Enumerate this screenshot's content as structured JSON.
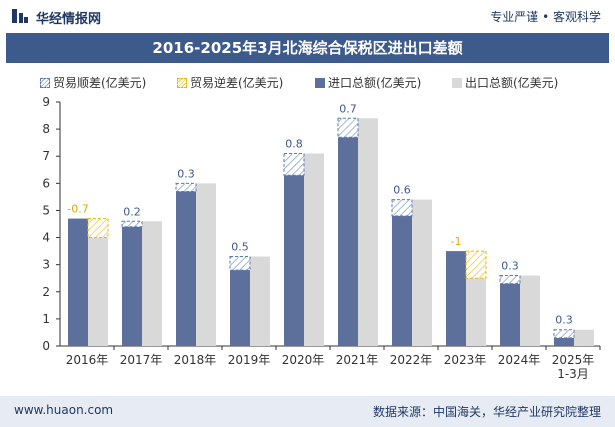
{
  "header": {
    "brand": "华经情报网",
    "slogan": "专业严谨 • 客观科学"
  },
  "title": "2016-2025年3月北海综合保税区进出口差额",
  "legend": {
    "surplus": "贸易顺差(亿美元)",
    "deficit": "贸易逆差(亿美元)",
    "import": "进口总额(亿美元)",
    "export": "出口总额(亿美元)"
  },
  "footer": {
    "website": "www.huaon.com",
    "source": "数据来源：中国海关，华经产业研究院整理"
  },
  "colors": {
    "import": "#5d6f9b",
    "export": "#d9d9d9",
    "surplus": "#5b7bb0",
    "deficit": "#e6b800",
    "axis": "#333333"
  },
  "chart_data": {
    "type": "bar",
    "title": "2016-2025年3月北海综合保税区进出口差额",
    "categories": [
      "2016年",
      "2017年",
      "2018年",
      "2019年",
      "2020年",
      "2021年",
      "2022年",
      "2023年",
      "2024年",
      "2025年\n1-3月"
    ],
    "series": [
      {
        "name": "进口总额(亿美元)",
        "values": [
          4.7,
          4.4,
          5.7,
          2.8,
          6.3,
          7.7,
          4.8,
          3.5,
          2.3,
          0.3
        ]
      },
      {
        "name": "出口总额(亿美元)",
        "values": [
          4.0,
          4.6,
          6.0,
          3.3,
          7.1,
          8.4,
          5.4,
          2.5,
          2.6,
          0.6
        ]
      }
    ],
    "balance": [
      -0.7,
      0.2,
      0.3,
      0.5,
      0.8,
      0.7,
      0.6,
      -1,
      0.3,
      0.3
    ],
    "balance_labels": [
      "-0.7",
      "0.2",
      "0.3",
      "0.5",
      "0.8",
      "0.7",
      "0.6",
      "-1",
      "0.3",
      "0.3"
    ],
    "ylim": [
      0,
      9
    ],
    "yticks": [
      0,
      1,
      2,
      3,
      4,
      5,
      6,
      7,
      8,
      9
    ],
    "xlabel": "",
    "ylabel": ""
  }
}
